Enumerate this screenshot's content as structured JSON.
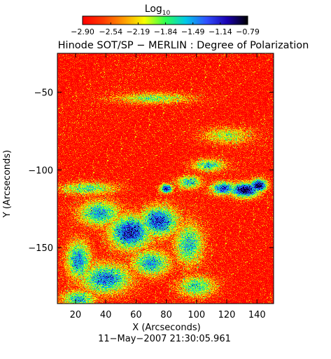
{
  "chart_data": {
    "type": "heatmap",
    "title": "Hinode SOT/SP − MERLIN : Degree of Polarization",
    "xlabel": "X (Arcseconds)",
    "ylabel": "Y (Arcseconds)",
    "timestamp": "11−May−2007 21:30:05.961",
    "xlim": [
      8,
      151
    ],
    "ylim": [
      -186,
      -25
    ],
    "x_ticks": [
      20,
      40,
      60,
      80,
      100,
      120,
      140
    ],
    "x_tick_labels": [
      "20",
      "40",
      "60",
      "80",
      "100",
      "120",
      "140"
    ],
    "y_ticks": [
      -50,
      -100,
      -150
    ],
    "y_tick_labels": [
      "−50",
      "−100",
      "−150"
    ],
    "colorbar": {
      "label": "Log",
      "label_sub": "10",
      "min": -2.9,
      "max": -0.79,
      "ticks": [
        -2.9,
        -2.54,
        -2.19,
        -1.84,
        -1.49,
        -1.14,
        -0.79
      ],
      "tick_labels": [
        "−2.90",
        "−2.54",
        "−2.19",
        "−1.84",
        "−1.49",
        "−1.14",
        "−0.79"
      ],
      "colors": [
        "#ff0000",
        "#ff3a00",
        "#ff9a00",
        "#f5ff00",
        "#2fff4f",
        "#00c8e8",
        "#3050ff",
        "#1a00b0",
        "#000000"
      ]
    },
    "background_log10": -2.9,
    "features": [
      {
        "x": 80,
        "y": -112,
        "sx": 3,
        "sy": 2.2,
        "peak": -1.0
      },
      {
        "x": 132,
        "y": -113,
        "sx": 7,
        "sy": 3.4,
        "peak": -0.8
      },
      {
        "x": 141,
        "y": -110,
        "sx": 4,
        "sy": 3,
        "peak": -0.8
      },
      {
        "x": 118,
        "y": -112,
        "sx": 6,
        "sy": 3,
        "peak": -1.2
      },
      {
        "x": 95,
        "y": -108,
        "sx": 6,
        "sy": 3,
        "peak": -1.6
      },
      {
        "x": 108,
        "y": -97,
        "sx": 8,
        "sy": 3,
        "peak": -1.7
      },
      {
        "x": 56,
        "y": -140,
        "sx": 10,
        "sy": 8,
        "peak": -1.1
      },
      {
        "x": 75,
        "y": -133,
        "sx": 9,
        "sy": 7,
        "peak": -1.2
      },
      {
        "x": 36,
        "y": -128,
        "sx": 10,
        "sy": 6,
        "peak": -1.5
      },
      {
        "x": 22,
        "y": -158,
        "sx": 6,
        "sy": 9,
        "peak": -1.4
      },
      {
        "x": 40,
        "y": -170,
        "sx": 12,
        "sy": 7,
        "peak": -1.4
      },
      {
        "x": 70,
        "y": -160,
        "sx": 9,
        "sy": 6,
        "peak": -1.5
      },
      {
        "x": 95,
        "y": -148,
        "sx": 7,
        "sy": 10,
        "peak": -1.6
      },
      {
        "x": 28,
        "y": -112,
        "sx": 14,
        "sy": 3,
        "peak": -1.8
      },
      {
        "x": 72,
        "y": -54,
        "sx": 18,
        "sy": 2.5,
        "peak": -1.9
      },
      {
        "x": 120,
        "y": -78,
        "sx": 12,
        "sy": 4,
        "peak": -2.0
      },
      {
        "x": 100,
        "y": -175,
        "sx": 9,
        "sy": 5,
        "peak": -1.7
      },
      {
        "x": 22,
        "y": -183,
        "sx": 8,
        "sy": 4,
        "peak": -1.6
      }
    ]
  }
}
